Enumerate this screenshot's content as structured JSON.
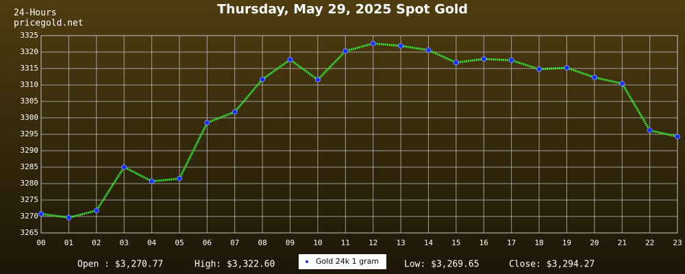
{
  "chart_data": {
    "type": "line",
    "title": "Thursday, May 29, 2025 Spot Gold",
    "subtitle": "24-Hours",
    "source": "pricegold.net",
    "categories": [
      "00",
      "01",
      "02",
      "03",
      "04",
      "05",
      "06",
      "07",
      "08",
      "09",
      "10",
      "11",
      "12",
      "13",
      "14",
      "15",
      "16",
      "17",
      "18",
      "19",
      "20",
      "21",
      "22",
      "23"
    ],
    "series": [
      {
        "name": "Gold 24k 1 gram",
        "color": "#33ee33",
        "marker_color": "#1a2cff",
        "values": [
          3270.77,
          3269.65,
          3271.8,
          3285.0,
          3280.7,
          3281.5,
          3298.5,
          3301.8,
          3311.7,
          3317.7,
          3311.6,
          3320.3,
          3322.6,
          3321.9,
          3320.6,
          3316.8,
          3317.9,
          3317.5,
          3314.8,
          3315.2,
          3312.3,
          3310.4,
          3296.2,
          3294.27
        ]
      }
    ],
    "ylim": [
      3265,
      3325
    ],
    "yticks": [
      3265,
      3270,
      3275,
      3280,
      3285,
      3290,
      3295,
      3300,
      3305,
      3310,
      3315,
      3320,
      3325
    ],
    "grid": true,
    "stats": [
      "Open : $3,270.77",
      "High: $3,322.60",
      "Low: $3,269.65",
      "Close: $3,294.27"
    ]
  }
}
